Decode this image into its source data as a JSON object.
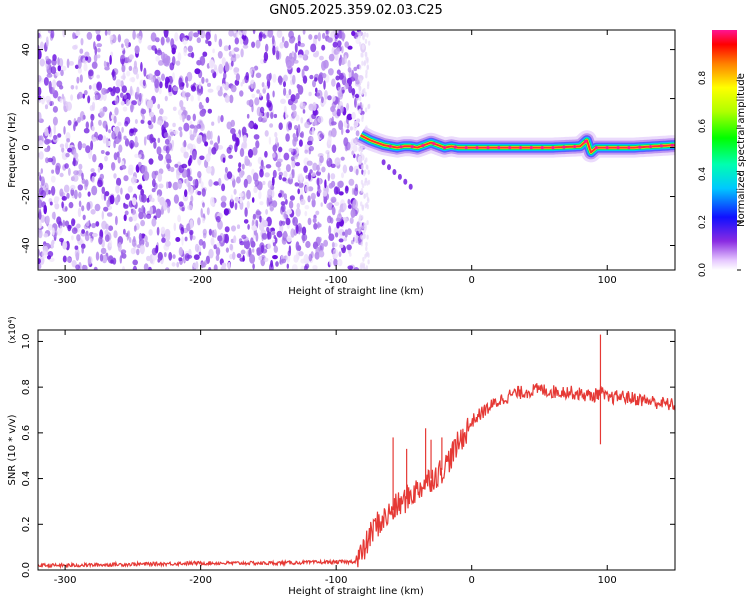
{
  "title": "GN05.2025.359.02.03.C25",
  "colors": {
    "snr_line": "#e53935",
    "speckle_light": "#d9c7f5",
    "speckle_dark": "#6a0fe0"
  },
  "chart_data": [
    {
      "type": "heatmap",
      "xlabel": "Height of straight line (km)",
      "ylabel": "Frequency (Hz)",
      "xlim": [
        -320,
        150
      ],
      "ylim": [
        -50,
        48
      ],
      "xticks": [
        -300,
        -200,
        -100,
        0,
        100
      ],
      "yticks": [
        -40,
        -20,
        0,
        20,
        40
      ],
      "colorbar": {
        "label": "Normalized spectral amplitude",
        "range": [
          0,
          1
        ],
        "ticks": [
          0.0,
          0.2,
          0.4,
          0.6,
          0.8
        ]
      },
      "noise_region_x": [
        -320,
        -80
      ],
      "ridge": {
        "x": [
          -82,
          -75,
          -70,
          -65,
          -60,
          -55,
          -50,
          -45,
          -40,
          -35,
          -30,
          -25,
          -20,
          -15,
          -10,
          -5,
          0,
          20,
          40,
          60,
          80,
          85,
          88,
          92,
          100,
          120,
          150
        ],
        "y": [
          5,
          3,
          2,
          1,
          0.5,
          0,
          0.5,
          0.5,
          0,
          1,
          2,
          1,
          0,
          0.5,
          0,
          0,
          0,
          0,
          0,
          0,
          0.5,
          3,
          -2,
          0,
          0,
          0,
          1
        ]
      },
      "ridge_amplitude": 0.95
    },
    {
      "type": "line",
      "xlabel": "Height of straight line (km)",
      "ylabel": "SNR (10 * v/v)",
      "y_multiplier": "(x10⁴)",
      "xlim": [
        -320,
        150
      ],
      "ylim": [
        0,
        1.05
      ],
      "xticks": [
        -300,
        -200,
        -100,
        0,
        100
      ],
      "yticks": [
        0.0,
        0.2,
        0.4,
        0.6,
        0.8,
        1.0
      ],
      "series": [
        {
          "x": [
            -320,
            -300,
            -250,
            -200,
            -150,
            -100,
            -90,
            -85,
            -80,
            -75,
            -70,
            -65,
            -60,
            -55,
            -50,
            -45,
            -40,
            -35,
            -30,
            -25,
            -20,
            -15,
            -10,
            -5,
            0,
            10,
            20,
            30,
            40,
            50,
            60,
            70,
            80,
            90,
            95,
            100,
            110,
            120,
            130,
            140,
            150
          ],
          "y": [
            0.02,
            0.02,
            0.025,
            0.03,
            0.03,
            0.035,
            0.035,
            0.04,
            0.08,
            0.15,
            0.2,
            0.22,
            0.25,
            0.28,
            0.3,
            0.33,
            0.35,
            0.38,
            0.4,
            0.42,
            0.45,
            0.5,
            0.55,
            0.6,
            0.65,
            0.7,
            0.74,
            0.77,
            0.78,
            0.79,
            0.78,
            0.78,
            0.77,
            0.76,
            0.78,
            0.75,
            0.76,
            0.75,
            0.74,
            0.73,
            0.72
          ]
        }
      ],
      "spikes": [
        {
          "x": -58,
          "y": 0.58
        },
        {
          "x": -48,
          "y": 0.53
        },
        {
          "x": -34,
          "y": 0.62
        },
        {
          "x": -30,
          "y": 0.57
        },
        {
          "x": -22,
          "y": 0.58
        },
        {
          "x": 95,
          "y": 1.03
        },
        {
          "x": 95,
          "y": 0.55
        }
      ]
    }
  ]
}
